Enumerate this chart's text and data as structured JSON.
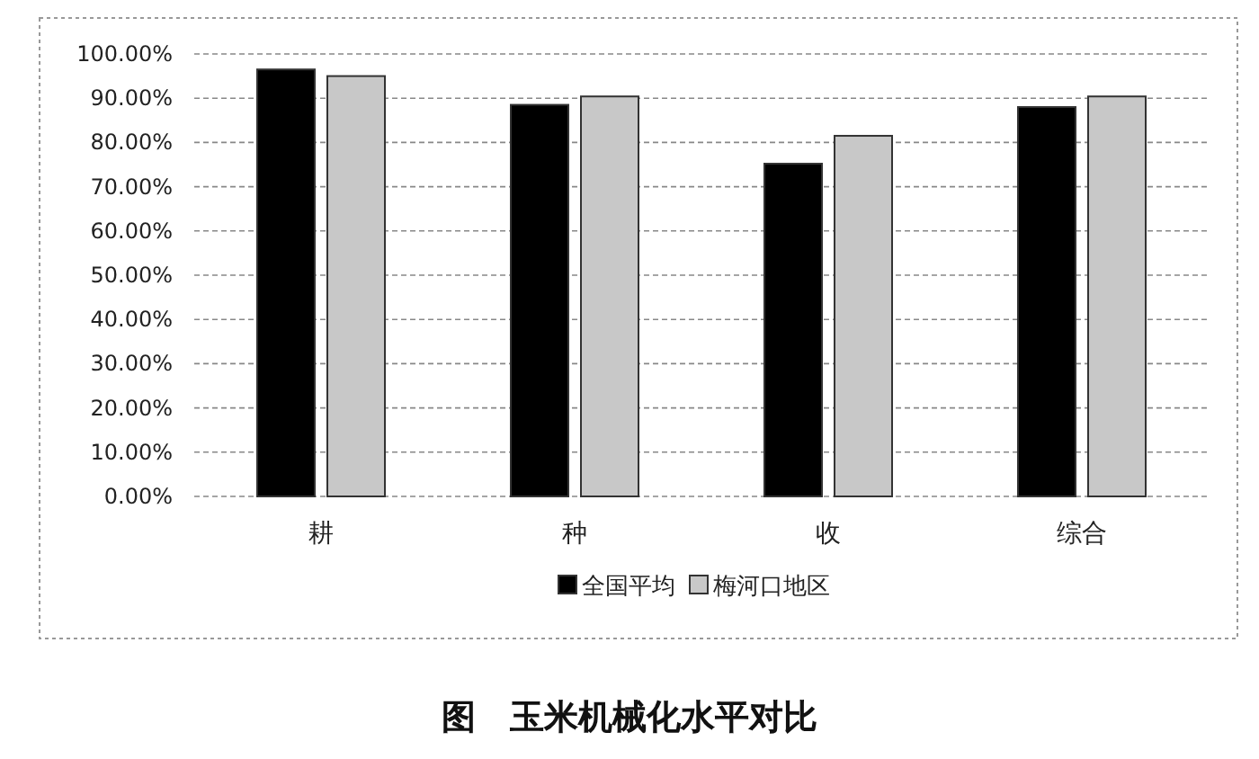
{
  "chart_data": {
    "type": "bar",
    "title": "图　玉米机械化水平对比",
    "categories": [
      "耕",
      "种",
      "收",
      "综合"
    ],
    "series": [
      {
        "name": "全国平均",
        "color": "#000000",
        "values": [
          96.5,
          88.5,
          75.2,
          88.0
        ]
      },
      {
        "name": "梅河口地区",
        "color": "#c8c8c8",
        "values": [
          95.0,
          90.4,
          81.5,
          90.4
        ]
      }
    ],
    "ylim": [
      0,
      100
    ],
    "yticks": [
      {
        "value": 0,
        "label": "0.00%"
      },
      {
        "value": 10,
        "label": "10.00%"
      },
      {
        "value": 20,
        "label": "20.00%"
      },
      {
        "value": 30,
        "label": "30.00%"
      },
      {
        "value": 40,
        "label": "40.00%"
      },
      {
        "value": 50,
        "label": "50.00%"
      },
      {
        "value": 60,
        "label": "60.00%"
      },
      {
        "value": 70,
        "label": "70.00%"
      },
      {
        "value": 80,
        "label": "80.00%"
      },
      {
        "value": 90,
        "label": "90.00%"
      },
      {
        "value": 100,
        "label": "100.00%"
      }
    ],
    "grid": "y",
    "legend": "bottom"
  }
}
